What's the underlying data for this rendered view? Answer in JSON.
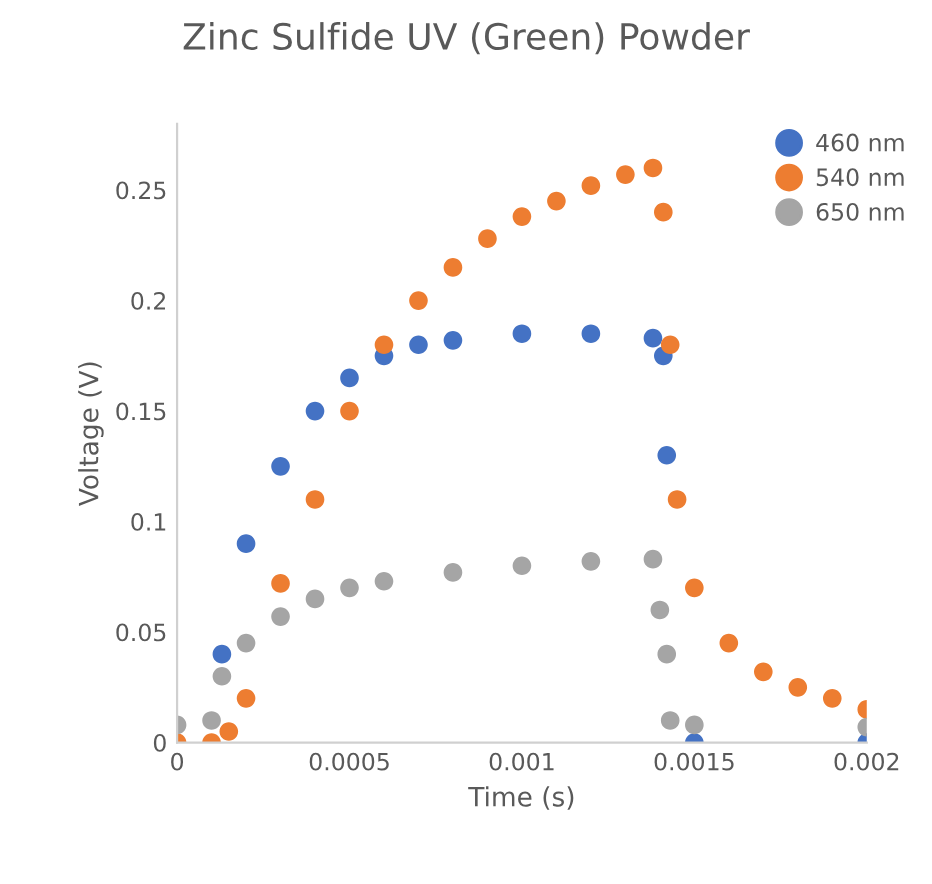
{
  "chart_data": {
    "type": "scatter",
    "title": "Zinc Sulfide UV (Green) Powder",
    "xlabel": "Time (s)",
    "ylabel": "Voltage (V)",
    "xlim": [
      0,
      0.002
    ],
    "ylim": [
      0,
      0.28
    ],
    "xticks": [
      0,
      0.0005,
      0.001,
      0.0015,
      0.002
    ],
    "yticks": [
      0,
      0.05,
      0.1,
      0.15,
      0.2,
      0.25
    ],
    "marker": "circle",
    "legend": "top right",
    "grid": false,
    "series": [
      {
        "name": "460 nm",
        "color": "#4472c4",
        "x": [
          0.00013,
          0.0002,
          0.0003,
          0.0004,
          0.0005,
          0.0006,
          0.0007,
          0.0008,
          0.001,
          0.0012,
          0.00138,
          0.00141,
          0.00142,
          0.0015,
          0.002
        ],
        "values": [
          0.04,
          0.09,
          0.125,
          0.15,
          0.165,
          0.175,
          0.18,
          0.182,
          0.185,
          0.185,
          0.183,
          0.175,
          0.13,
          0.0,
          0.0
        ]
      },
      {
        "name": "540 nm",
        "color": "#ed7d31",
        "x": [
          0,
          0.0001,
          0.00015,
          0.0002,
          0.0003,
          0.0004,
          0.0005,
          0.0006,
          0.0007,
          0.0008,
          0.0009,
          0.001,
          0.0011,
          0.0012,
          0.0013,
          0.00138,
          0.00141,
          0.00143,
          0.00145,
          0.0015,
          0.0016,
          0.0017,
          0.0018,
          0.0019,
          0.002
        ],
        "values": [
          0.0,
          0.0,
          0.005,
          0.02,
          0.072,
          0.11,
          0.15,
          0.18,
          0.2,
          0.215,
          0.228,
          0.238,
          0.245,
          0.252,
          0.257,
          0.26,
          0.24,
          0.18,
          0.11,
          0.07,
          0.045,
          0.032,
          0.025,
          0.02,
          0.015
        ]
      },
      {
        "name": "650 nm",
        "color": "#a5a5a5",
        "x": [
          0,
          0.0001,
          0.00013,
          0.0002,
          0.0003,
          0.0004,
          0.0005,
          0.0006,
          0.0008,
          0.001,
          0.0012,
          0.00138,
          0.0014,
          0.00142,
          0.00143,
          0.0015,
          0.002
        ],
        "values": [
          0.008,
          0.01,
          0.03,
          0.045,
          0.057,
          0.065,
          0.07,
          0.073,
          0.077,
          0.08,
          0.082,
          0.083,
          0.06,
          0.04,
          0.01,
          0.008,
          0.007
        ]
      }
    ]
  }
}
